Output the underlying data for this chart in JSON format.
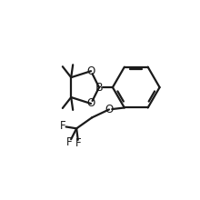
{
  "bg_color": "#ffffff",
  "line_color": "#1a1a1a",
  "line_width": 1.6,
  "font_size": 8.5,
  "figsize": [
    2.2,
    2.2
  ],
  "dpi": 100,
  "xlim": [
    0,
    11
  ],
  "ylim": [
    0,
    11
  ]
}
